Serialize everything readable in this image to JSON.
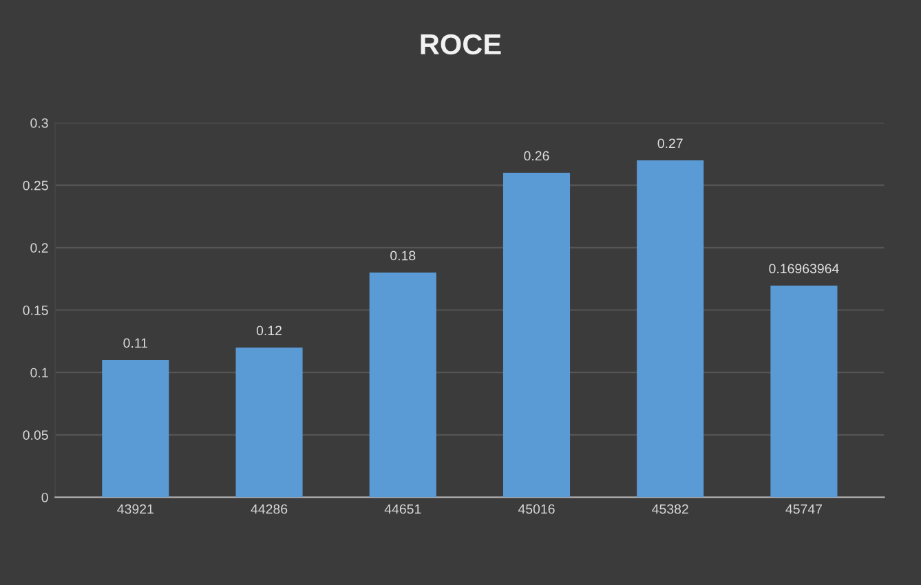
{
  "chart_data": {
    "type": "bar",
    "title": "ROCE",
    "categories": [
      "43921",
      "44286",
      "44651",
      "45016",
      "45382",
      "45747"
    ],
    "values": [
      0.11,
      0.12,
      0.18,
      0.26,
      0.27,
      0.16963964
    ],
    "color": "#5b9bd5",
    "ylim": [
      0,
      0.3
    ],
    "yticks": [
      0,
      0.05,
      0.1,
      0.15,
      0.2,
      0.25,
      0.3
    ],
    "grid": "y",
    "data_labels": true
  }
}
